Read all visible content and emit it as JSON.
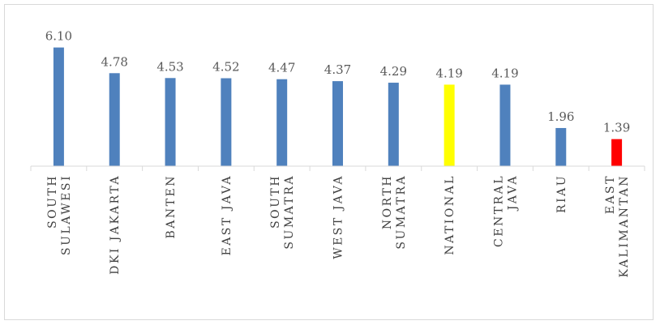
{
  "chart_data": {
    "type": "bar",
    "categories": [
      [
        "SOUTH",
        "SULAWESI"
      ],
      [
        "DKI JAKARTA"
      ],
      [
        "BANTEN"
      ],
      [
        "EAST JAVA"
      ],
      [
        "SOUTH",
        "SUMATRA"
      ],
      [
        "WEST JAVA"
      ],
      [
        "NORTH",
        "SUMATRA"
      ],
      [
        "NATIONAL"
      ],
      [
        "CENTRAL",
        "JAVA"
      ],
      [
        "RIAU"
      ],
      [
        "EAST",
        "KALIMANTAN"
      ]
    ],
    "values": [
      6.1,
      4.78,
      4.53,
      4.52,
      4.47,
      4.37,
      4.29,
      4.19,
      4.19,
      1.96,
      1.39
    ],
    "value_labels": [
      "6.10",
      "4.78",
      "4.53",
      "4.52",
      "4.47",
      "4.37",
      "4.29",
      "4.19",
      "4.19",
      "1.96",
      "1.39"
    ],
    "colors": [
      "#4f81bd",
      "#4f81bd",
      "#4f81bd",
      "#4f81bd",
      "#4f81bd",
      "#4f81bd",
      "#4f81bd",
      "#ffff00",
      "#4f81bd",
      "#4f81bd",
      "#ff0000"
    ],
    "ylim": [
      0,
      7
    ],
    "grid": false,
    "legend": "none"
  }
}
